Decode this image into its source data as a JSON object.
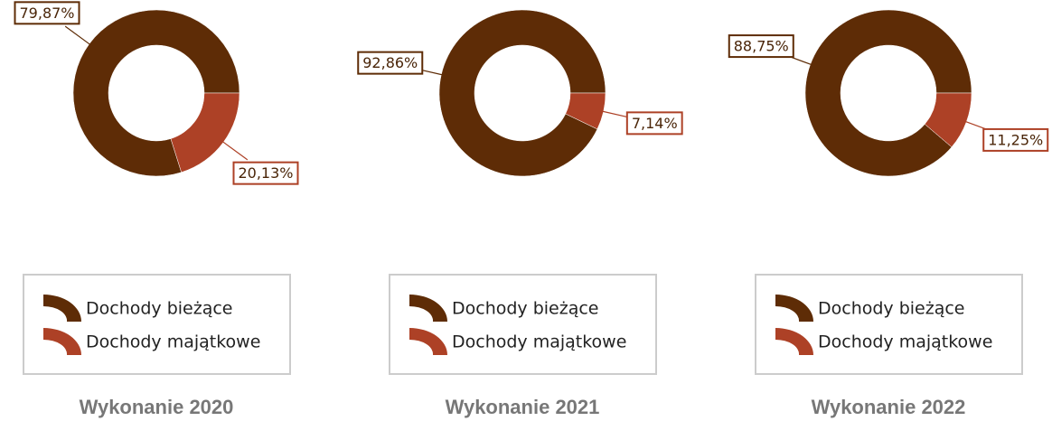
{
  "chart_data": [
    {
      "type": "donut",
      "title": "Wykonanie 2020",
      "categories": [
        "Dochody bieżące",
        "Dochody majątkowe"
      ],
      "values": [
        79.87,
        20.13
      ],
      "value_labels": [
        "79,87%",
        "20,13%"
      ],
      "colors": [
        "#5e2c06",
        "#ad4126"
      ]
    },
    {
      "type": "donut",
      "title": "Wykonanie 2021",
      "categories": [
        "Dochody bieżące",
        "Dochody majątkowe"
      ],
      "values": [
        92.86,
        7.14
      ],
      "value_labels": [
        "92,86%",
        "7,14%"
      ],
      "colors": [
        "#5e2c06",
        "#ad4126"
      ]
    },
    {
      "type": "donut",
      "title": "Wykonanie 2022",
      "categories": [
        "Dochody bieżące",
        "Dochody majątkowe"
      ],
      "values": [
        88.75,
        11.25
      ],
      "value_labels": [
        "88,75%",
        "11,25%"
      ],
      "colors": [
        "#5e2c06",
        "#ad4126"
      ]
    }
  ]
}
